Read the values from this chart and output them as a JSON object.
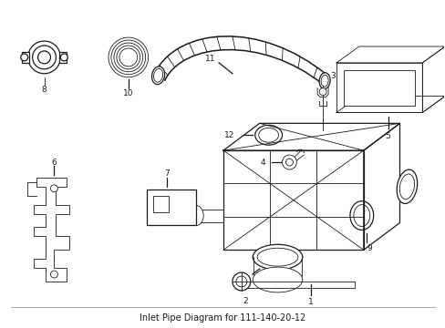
{
  "title": "Inlet Pipe Diagram for 111-140-20-12",
  "background_color": "#ffffff",
  "line_color": "#1a1a1a",
  "fig_width": 4.89,
  "fig_height": 3.6,
  "dpi": 100
}
